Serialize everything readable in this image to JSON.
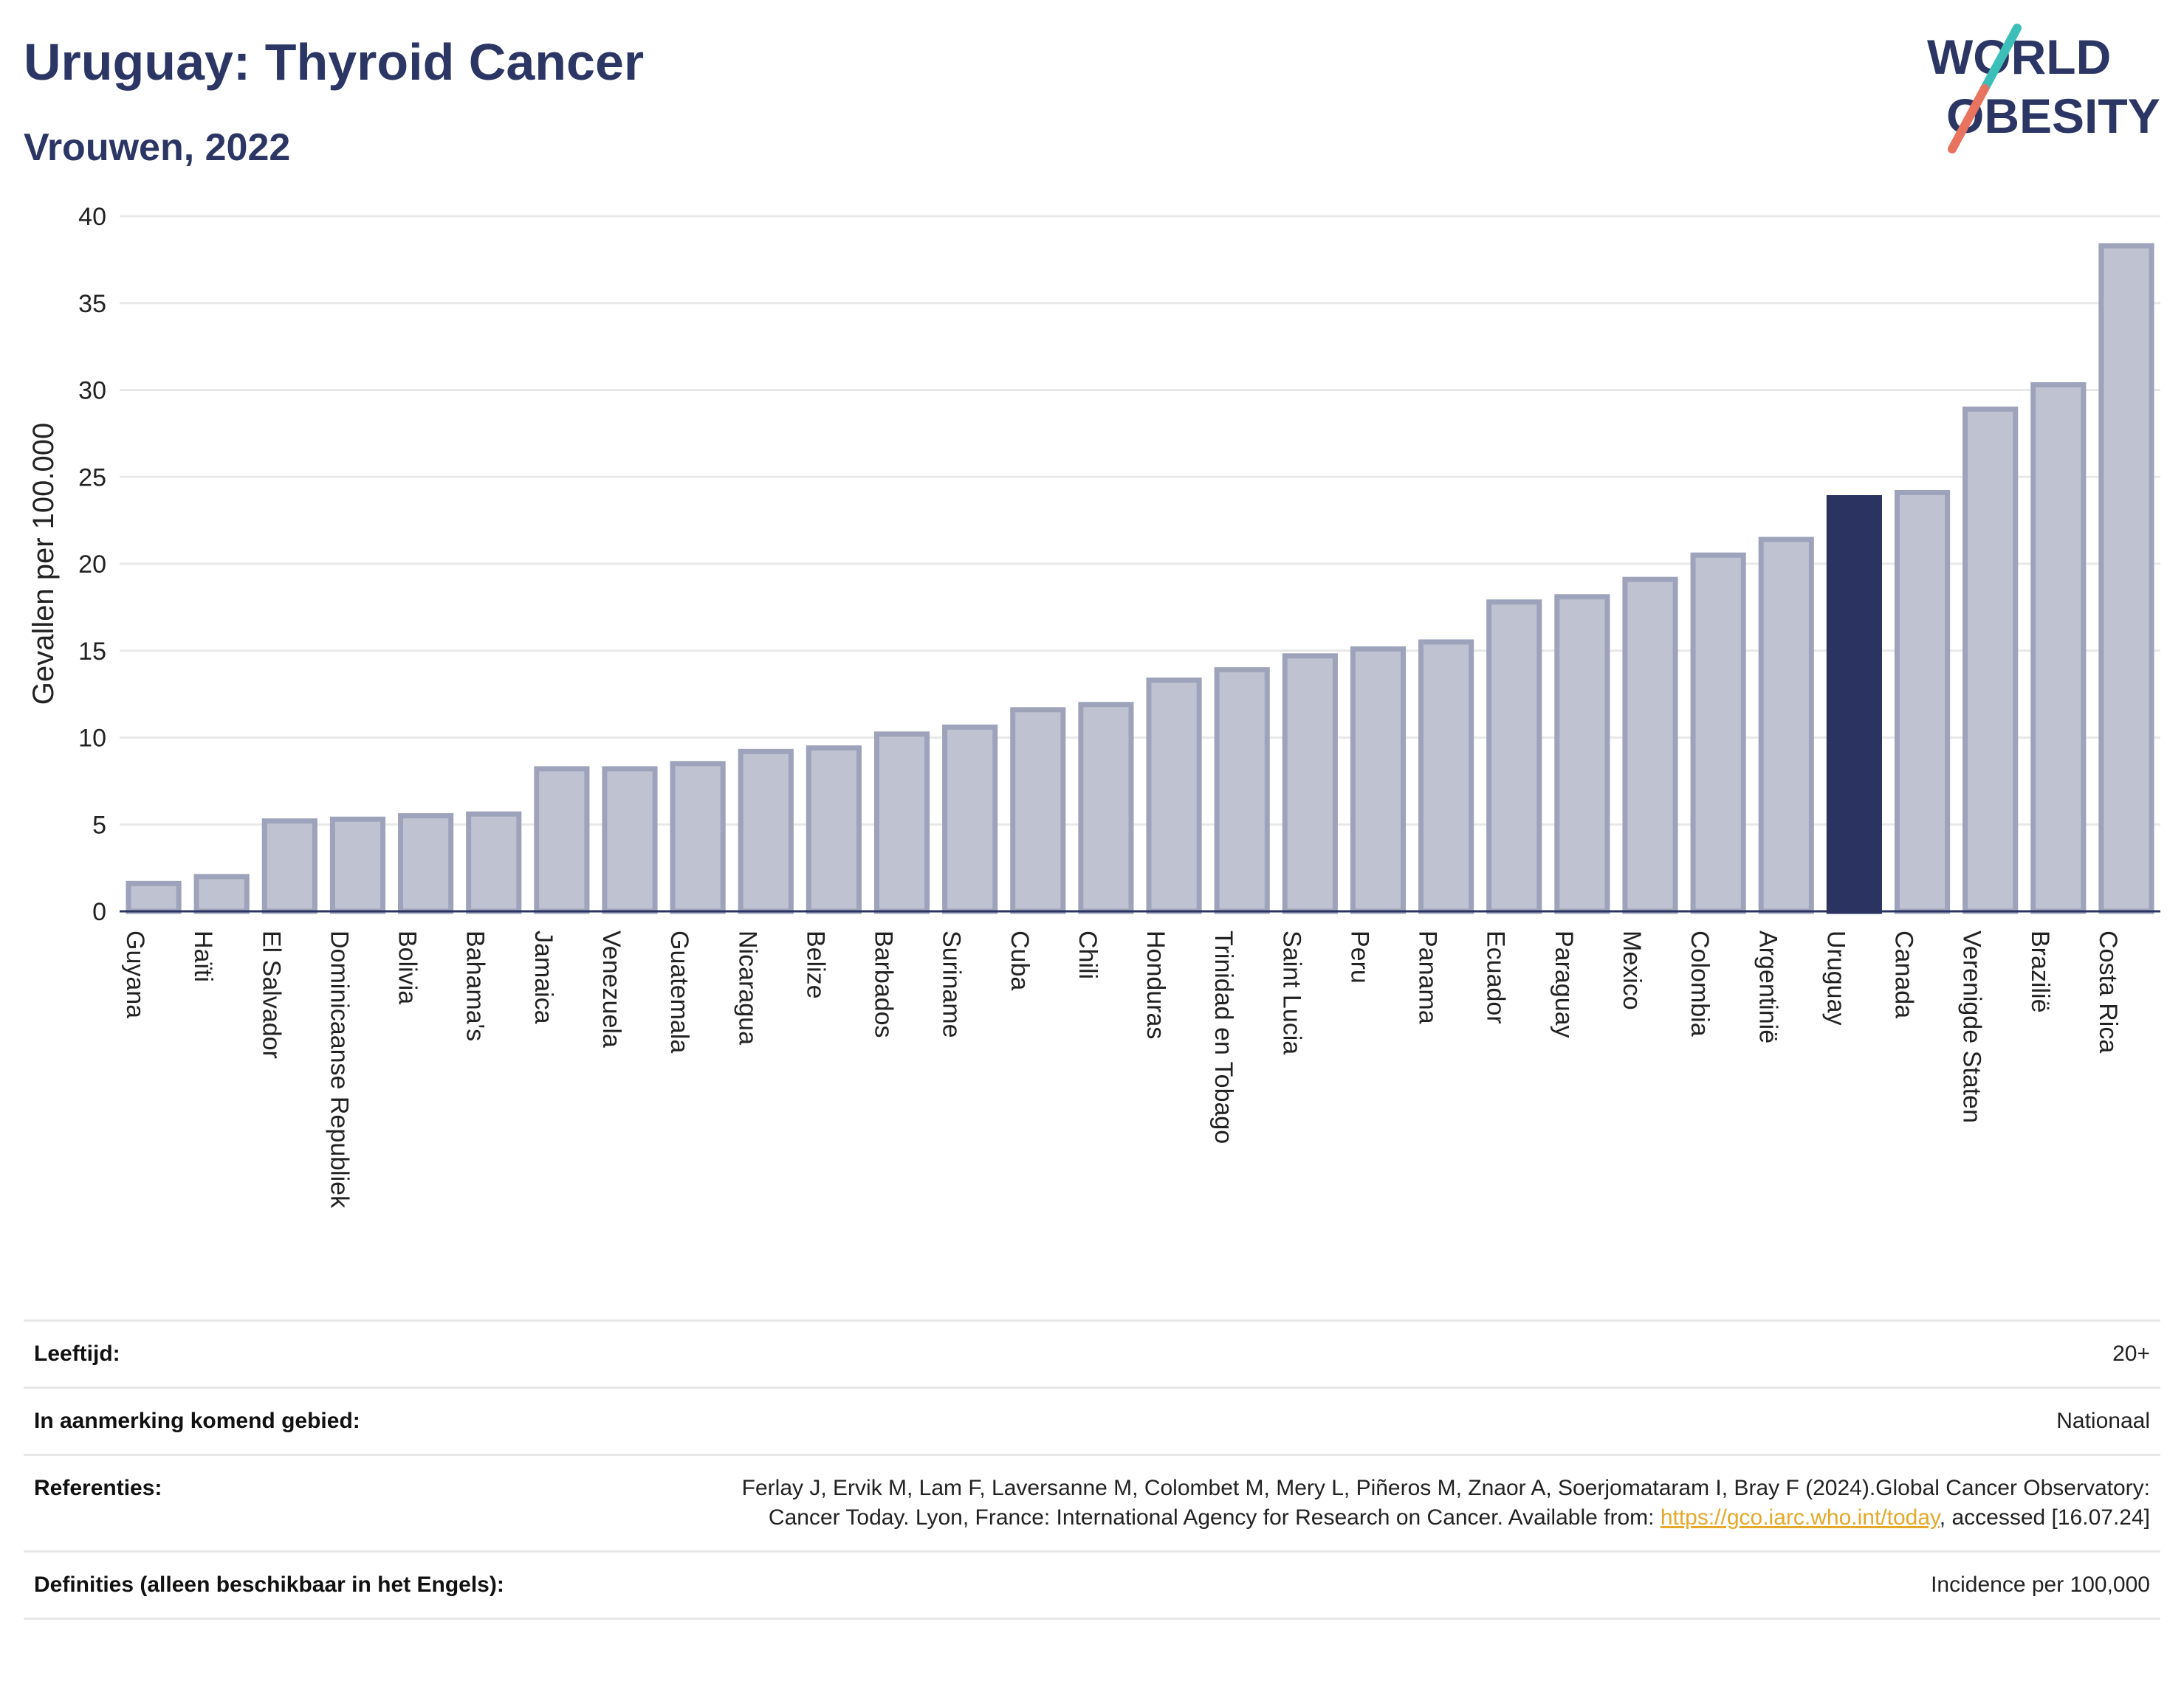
{
  "header": {
    "title": "Uruguay: Thyroid Cancer",
    "subtitle": "Vrouwen, 2022",
    "logo_line1": "WORLD",
    "logo_line2": "OBESITY"
  },
  "chart_data": {
    "type": "bar",
    "title": "Uruguay: Thyroid Cancer",
    "subtitle": "Vrouwen, 2022",
    "ylabel": "Gevallen per 100.000",
    "xlabel": "",
    "ylim": [
      0,
      40
    ],
    "yticks": [
      0,
      5,
      10,
      15,
      20,
      25,
      30,
      35,
      40
    ],
    "grid": true,
    "highlight": "Uruguay",
    "colors": {
      "bar": "#bfc3d1",
      "bar_border": "#9da3ba",
      "highlight": "#2b3461",
      "grid": "#e8e8e8",
      "axis": "#2b3461"
    },
    "categories": [
      "Guyana",
      "Haïti",
      "El Salvador",
      "Dominicaanse Republiek",
      "Bolivia",
      "Bahama's",
      "Jamaica",
      "Venezuela",
      "Guatemala",
      "Nicaragua",
      "Belize",
      "Barbados",
      "Suriname",
      "Cuba",
      "Chili",
      "Honduras",
      "Trinidad en Tobago",
      "Saint Lucia",
      "Peru",
      "Panama",
      "Ecuador",
      "Paraguay",
      "Mexico",
      "Colombia",
      "Argentinië",
      "Uruguay",
      "Canada",
      "Verenigde Staten",
      "Brazilië",
      "Costa Rica"
    ],
    "values": [
      1.6,
      2.0,
      5.2,
      5.3,
      5.5,
      5.6,
      8.2,
      8.2,
      8.5,
      9.2,
      9.4,
      10.2,
      10.6,
      11.6,
      11.9,
      13.3,
      13.9,
      14.7,
      15.1,
      15.5,
      17.8,
      18.1,
      19.1,
      20.5,
      21.4,
      23.8,
      24.1,
      28.9,
      30.3,
      38.3
    ]
  },
  "info": {
    "rows": [
      {
        "label": "Leeftijd:",
        "value": "20+"
      },
      {
        "label": "In aanmerking komend gebied:",
        "value": "Nationaal"
      },
      {
        "label": "Definities (alleen beschikbaar in het Engels):",
        "value": "Incidence per 100,000"
      }
    ],
    "references": {
      "label": "Referenties:",
      "text_before": "Ferlay J, Ervik M, Lam F, Laversanne M, Colombet M, Mery L, Piñeros M, Znaor A, Soerjomataram I, Bray F (2024).Global Cancer Observatory: Cancer Today. Lyon, France: International Agency for Research on Cancer. Available from: ",
      "link": "https://gco.iarc.who.int/today",
      "text_after": ", accessed [16.07.24]"
    }
  }
}
